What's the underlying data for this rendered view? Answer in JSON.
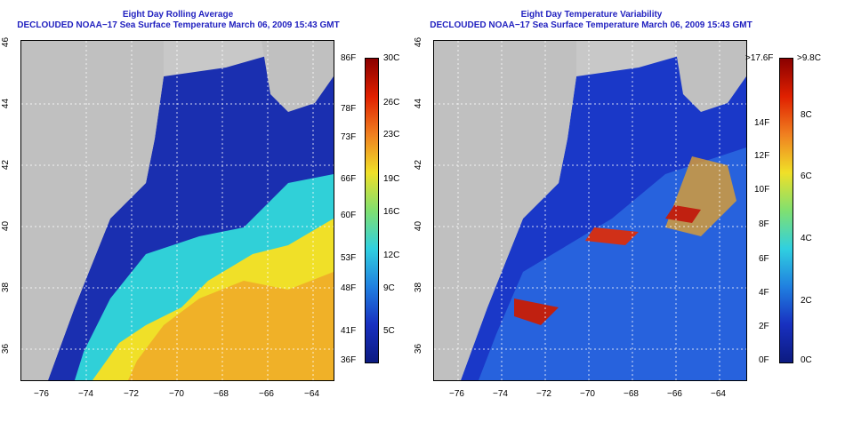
{
  "left_panel": {
    "title": "Eight Day Rolling Average",
    "subtitle": "DECLOUDED NOAA−17 Sea Surface Temperature March 06, 2009 15:43 GMT",
    "colorbar_left_labels": [
      "86F",
      "78F",
      "73F",
      "66F",
      "60F",
      "53F",
      "48F",
      "41F",
      "36F"
    ],
    "colorbar_right_labels": [
      "30C",
      "26C",
      "23C",
      "19C",
      "16C",
      "12C",
      "9C",
      "5C"
    ]
  },
  "right_panel": {
    "title": "Eight Day Temperature Variability",
    "subtitle": "DECLOUDED NOAA−17 Sea Surface Temperature March 06, 2009 15:43 GMT",
    "colorbar_left_labels": [
      ">17.6F",
      "14F",
      "12F",
      "10F",
      "8F",
      "6F",
      "4F",
      "2F",
      "0F"
    ],
    "colorbar_right_labels": [
      ">9.8C",
      "8C",
      "6C",
      "4C",
      "2C",
      "0C"
    ]
  },
  "axes": {
    "lon_labels": [
      "−76",
      "−74",
      "−72",
      "−70",
      "−68",
      "−66",
      "−64"
    ],
    "lat_labels": [
      "46",
      "44",
      "42",
      "40",
      "38",
      "36"
    ]
  },
  "colors": {
    "land": "#c0c0c0",
    "cold": "#1a2fb0",
    "title": "#1f1fbf"
  }
}
